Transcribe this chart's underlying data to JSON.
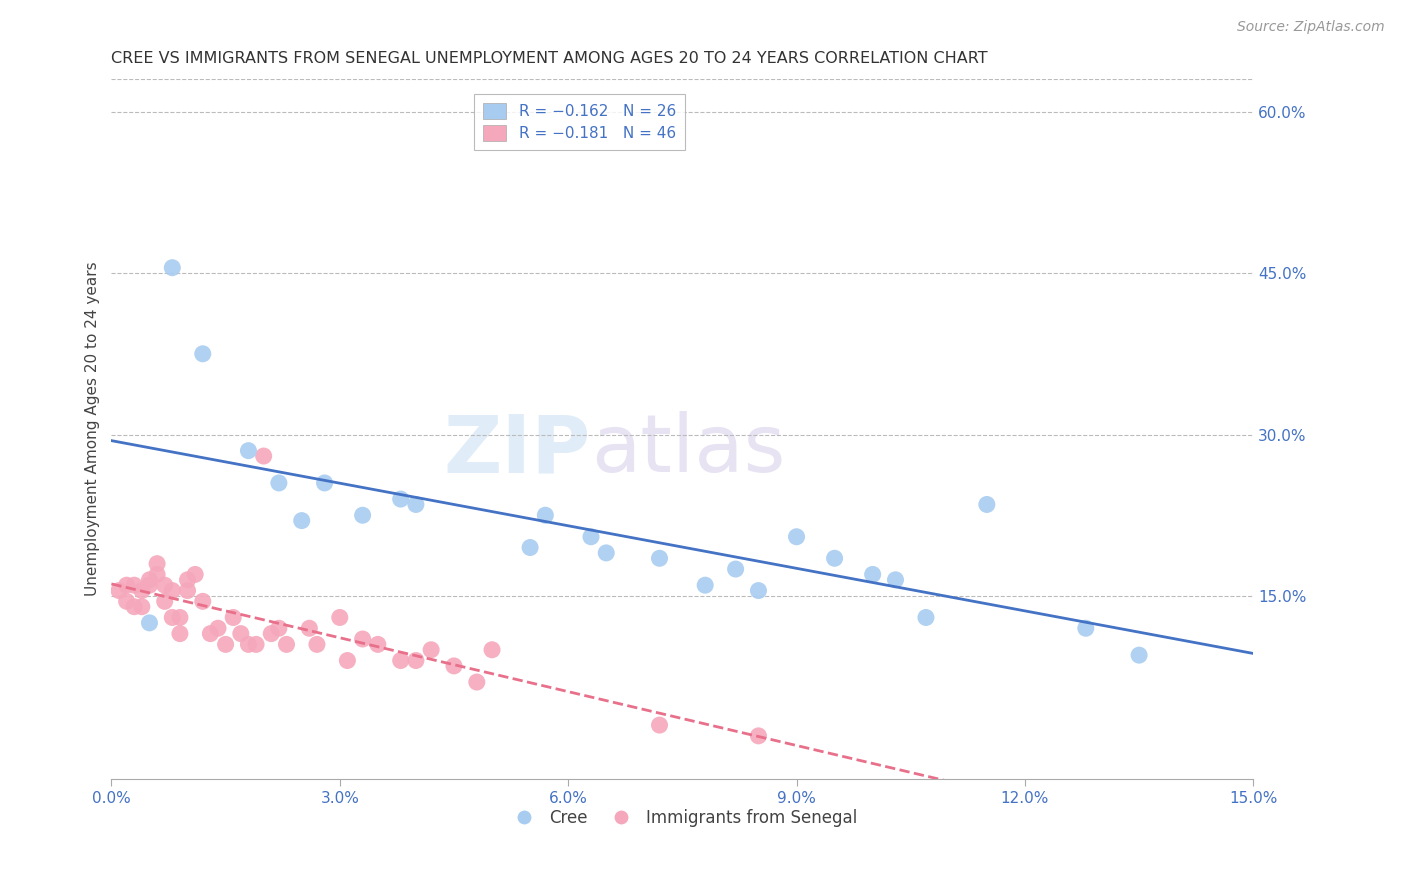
{
  "title": "CREE VS IMMIGRANTS FROM SENEGAL UNEMPLOYMENT AMONG AGES 20 TO 24 YEARS CORRELATION CHART",
  "source": "Source: ZipAtlas.com",
  "ylabel": "Unemployment Among Ages 20 to 24 years",
  "xlim": [
    0.0,
    0.15
  ],
  "ylim": [
    -0.02,
    0.63
  ],
  "xticks": [
    0.0,
    0.03,
    0.06,
    0.09,
    0.12,
    0.15
  ],
  "yticks_right": [
    0.15,
    0.3,
    0.45,
    0.6
  ],
  "ytick_labels_right": [
    "15.0%",
    "30.0%",
    "45.0%",
    "60.0%"
  ],
  "xtick_labels": [
    "0.0%",
    "3.0%",
    "6.0%",
    "9.0%",
    "12.0%",
    "15.0%"
  ],
  "cree_color": "#A8CCF0",
  "senegal_color": "#F5A8BC",
  "cree_line_color": "#4472C4",
  "senegal_line_color": "#E8708A",
  "legend_r_cree": "R = −0.162",
  "legend_n_cree": "N = 26",
  "legend_r_senegal": "R = −0.181",
  "legend_n_senegal": "N = 46",
  "watermark_zip": "ZIP",
  "watermark_atlas": "atlas",
  "background_color": "#ffffff",
  "grid_color": "#bbbbbb",
  "cree_x": [
    0.005,
    0.008,
    0.012,
    0.018,
    0.022,
    0.025,
    0.028,
    0.033,
    0.038,
    0.04,
    0.055,
    0.057,
    0.063,
    0.065,
    0.072,
    0.078,
    0.082,
    0.085,
    0.09,
    0.095,
    0.1,
    0.103,
    0.107,
    0.115,
    0.128,
    0.135
  ],
  "cree_y": [
    0.125,
    0.455,
    0.375,
    0.285,
    0.255,
    0.22,
    0.255,
    0.225,
    0.24,
    0.235,
    0.195,
    0.225,
    0.205,
    0.19,
    0.185,
    0.16,
    0.175,
    0.155,
    0.205,
    0.185,
    0.17,
    0.165,
    0.13,
    0.235,
    0.12,
    0.095
  ],
  "senegal_x": [
    0.001,
    0.002,
    0.002,
    0.003,
    0.003,
    0.004,
    0.004,
    0.005,
    0.005,
    0.006,
    0.006,
    0.007,
    0.007,
    0.008,
    0.008,
    0.009,
    0.009,
    0.01,
    0.01,
    0.011,
    0.012,
    0.013,
    0.014,
    0.015,
    0.016,
    0.017,
    0.018,
    0.019,
    0.02,
    0.021,
    0.022,
    0.023,
    0.026,
    0.027,
    0.03,
    0.031,
    0.033,
    0.035,
    0.038,
    0.04,
    0.042,
    0.045,
    0.048,
    0.05,
    0.072,
    0.085
  ],
  "senegal_y": [
    0.155,
    0.145,
    0.16,
    0.14,
    0.16,
    0.155,
    0.14,
    0.165,
    0.16,
    0.18,
    0.17,
    0.16,
    0.145,
    0.155,
    0.13,
    0.13,
    0.115,
    0.165,
    0.155,
    0.17,
    0.145,
    0.115,
    0.12,
    0.105,
    0.13,
    0.115,
    0.105,
    0.105,
    0.28,
    0.115,
    0.12,
    0.105,
    0.12,
    0.105,
    0.13,
    0.09,
    0.11,
    0.105,
    0.09,
    0.09,
    0.1,
    0.085,
    0.07,
    0.1,
    0.03,
    0.02
  ]
}
